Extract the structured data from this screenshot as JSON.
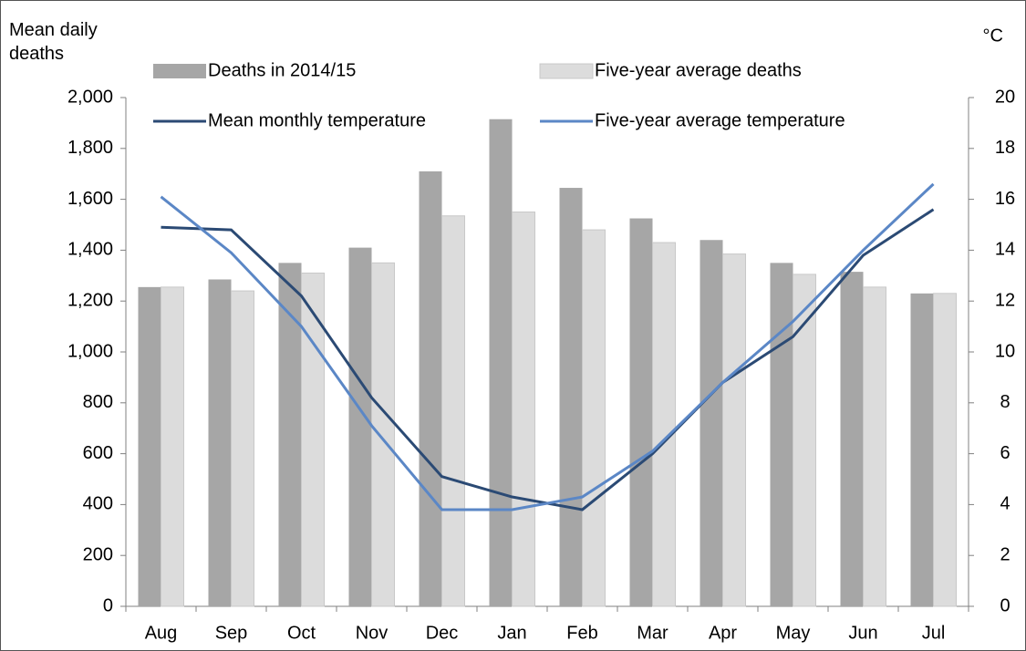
{
  "chart_data": {
    "type": "bar-line",
    "ylabel": "Mean daily deaths",
    "y2label": "°C",
    "categories": [
      "Aug",
      "Sep",
      "Oct",
      "Nov",
      "Dec",
      "Jan",
      "Feb",
      "Mar",
      "Apr",
      "May",
      "Jun",
      "Jul"
    ],
    "series": [
      {
        "name": "Deaths in 2014/15",
        "type": "bar",
        "color": "#a6a6a6",
        "values": [
          1255,
          1285,
          1350,
          1410,
          1710,
          1915,
          1645,
          1525,
          1440,
          1350,
          1315,
          1230
        ]
      },
      {
        "name": "Five-year average deaths",
        "type": "bar",
        "color": "#dcdcdc",
        "values": [
          1255,
          1240,
          1310,
          1350,
          1535,
          1550,
          1480,
          1430,
          1385,
          1305,
          1255,
          1230
        ]
      },
      {
        "name": "Mean monthly temperature",
        "type": "line",
        "axis": "y2",
        "color": "#2b4a74",
        "values": [
          14.9,
          14.8,
          12.2,
          8.2,
          5.1,
          4.3,
          3.8,
          6.0,
          8.8,
          10.6,
          13.8,
          15.6
        ]
      },
      {
        "name": "Five-year average temperature",
        "type": "line",
        "axis": "y2",
        "color": "#5b87c6",
        "values": [
          16.1,
          13.9,
          11.0,
          7.1,
          3.8,
          3.8,
          4.3,
          6.1,
          8.8,
          11.2,
          14.0,
          16.6
        ]
      }
    ],
    "ylim": [
      0,
      2000
    ],
    "yticks": [
      0,
      200,
      400,
      600,
      800,
      {
        "value": 1000,
        "label": "1,000"
      },
      {
        "value": 1200,
        "label": "1,200"
      },
      {
        "value": 1400,
        "label": "1,400"
      },
      {
        "value": 1600,
        "label": "1,600"
      },
      {
        "value": 1800,
        "label": "1,800"
      },
      {
        "value": 2000,
        "label": "2,000"
      }
    ],
    "y2lim": [
      0,
      20
    ],
    "y2ticks": [
      0,
      2,
      4,
      6,
      8,
      10,
      12,
      14,
      16,
      18,
      20
    ]
  }
}
